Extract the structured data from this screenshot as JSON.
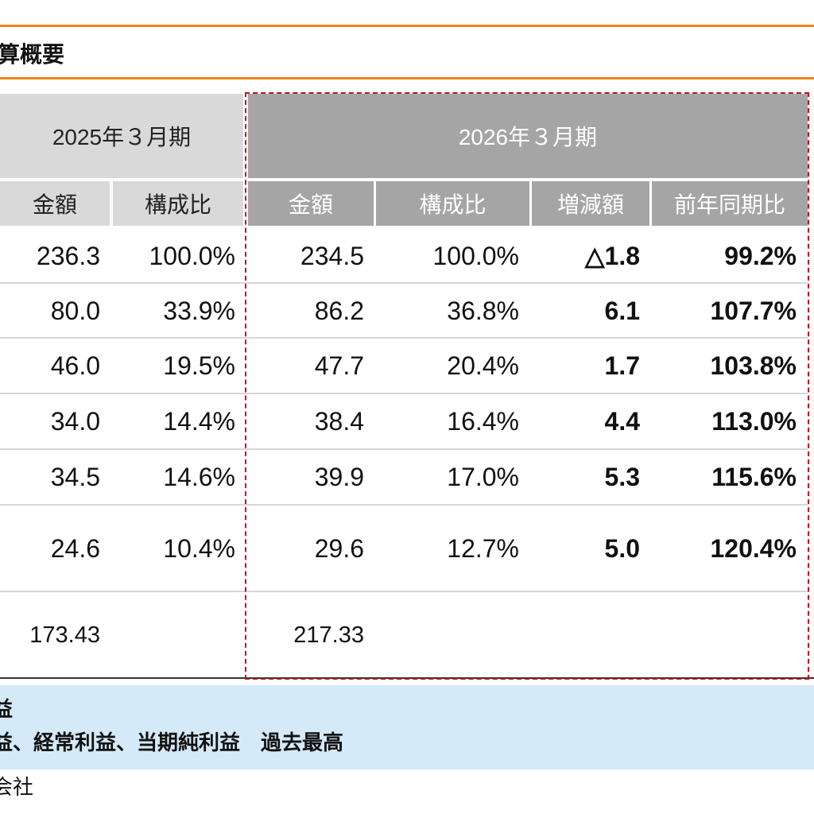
{
  "title": "算概要",
  "header": {
    "prev_period": "2025年３月期",
    "cur_period": "2026年３月期",
    "prev_cols": [
      "金額",
      "構成比"
    ],
    "cur_cols": [
      "金額",
      "構成比",
      "増減額",
      "前年同期比"
    ]
  },
  "rows": [
    {
      "prev_amount": "236.3",
      "prev_ratio": "100.0%",
      "cur_amount": "234.5",
      "cur_ratio": "100.0%",
      "change": "△1.8",
      "yoy": "99.2%"
    },
    {
      "prev_amount": "80.0",
      "prev_ratio": "33.9%",
      "cur_amount": "86.2",
      "cur_ratio": "36.8%",
      "change": "6.1",
      "yoy": "107.7%"
    },
    {
      "prev_amount": "46.0",
      "prev_ratio": "19.5%",
      "cur_amount": "47.7",
      "cur_ratio": "20.4%",
      "change": "1.7",
      "yoy": "103.8%"
    },
    {
      "prev_amount": "34.0",
      "prev_ratio": "14.4%",
      "cur_amount": "38.4",
      "cur_ratio": "16.4%",
      "change": "4.4",
      "yoy": "113.0%"
    },
    {
      "prev_amount": "34.5",
      "prev_ratio": "14.6%",
      "cur_amount": "39.9",
      "cur_ratio": "17.0%",
      "change": "5.3",
      "yoy": "115.6%"
    },
    {
      "prev_amount": "24.6",
      "prev_ratio": "10.4%",
      "cur_amount": "29.6",
      "cur_ratio": "12.7%",
      "change": "5.0",
      "yoy": "120.4%"
    },
    {
      "prev_amount": "173.43",
      "prev_ratio": "",
      "cur_amount": "217.33",
      "cur_ratio": "",
      "change": "",
      "yoy": ""
    }
  ],
  "notes": {
    "line1": "益",
    "line2": "益、経常利益、当期純利益　過去最高"
  },
  "footer": "会社"
}
